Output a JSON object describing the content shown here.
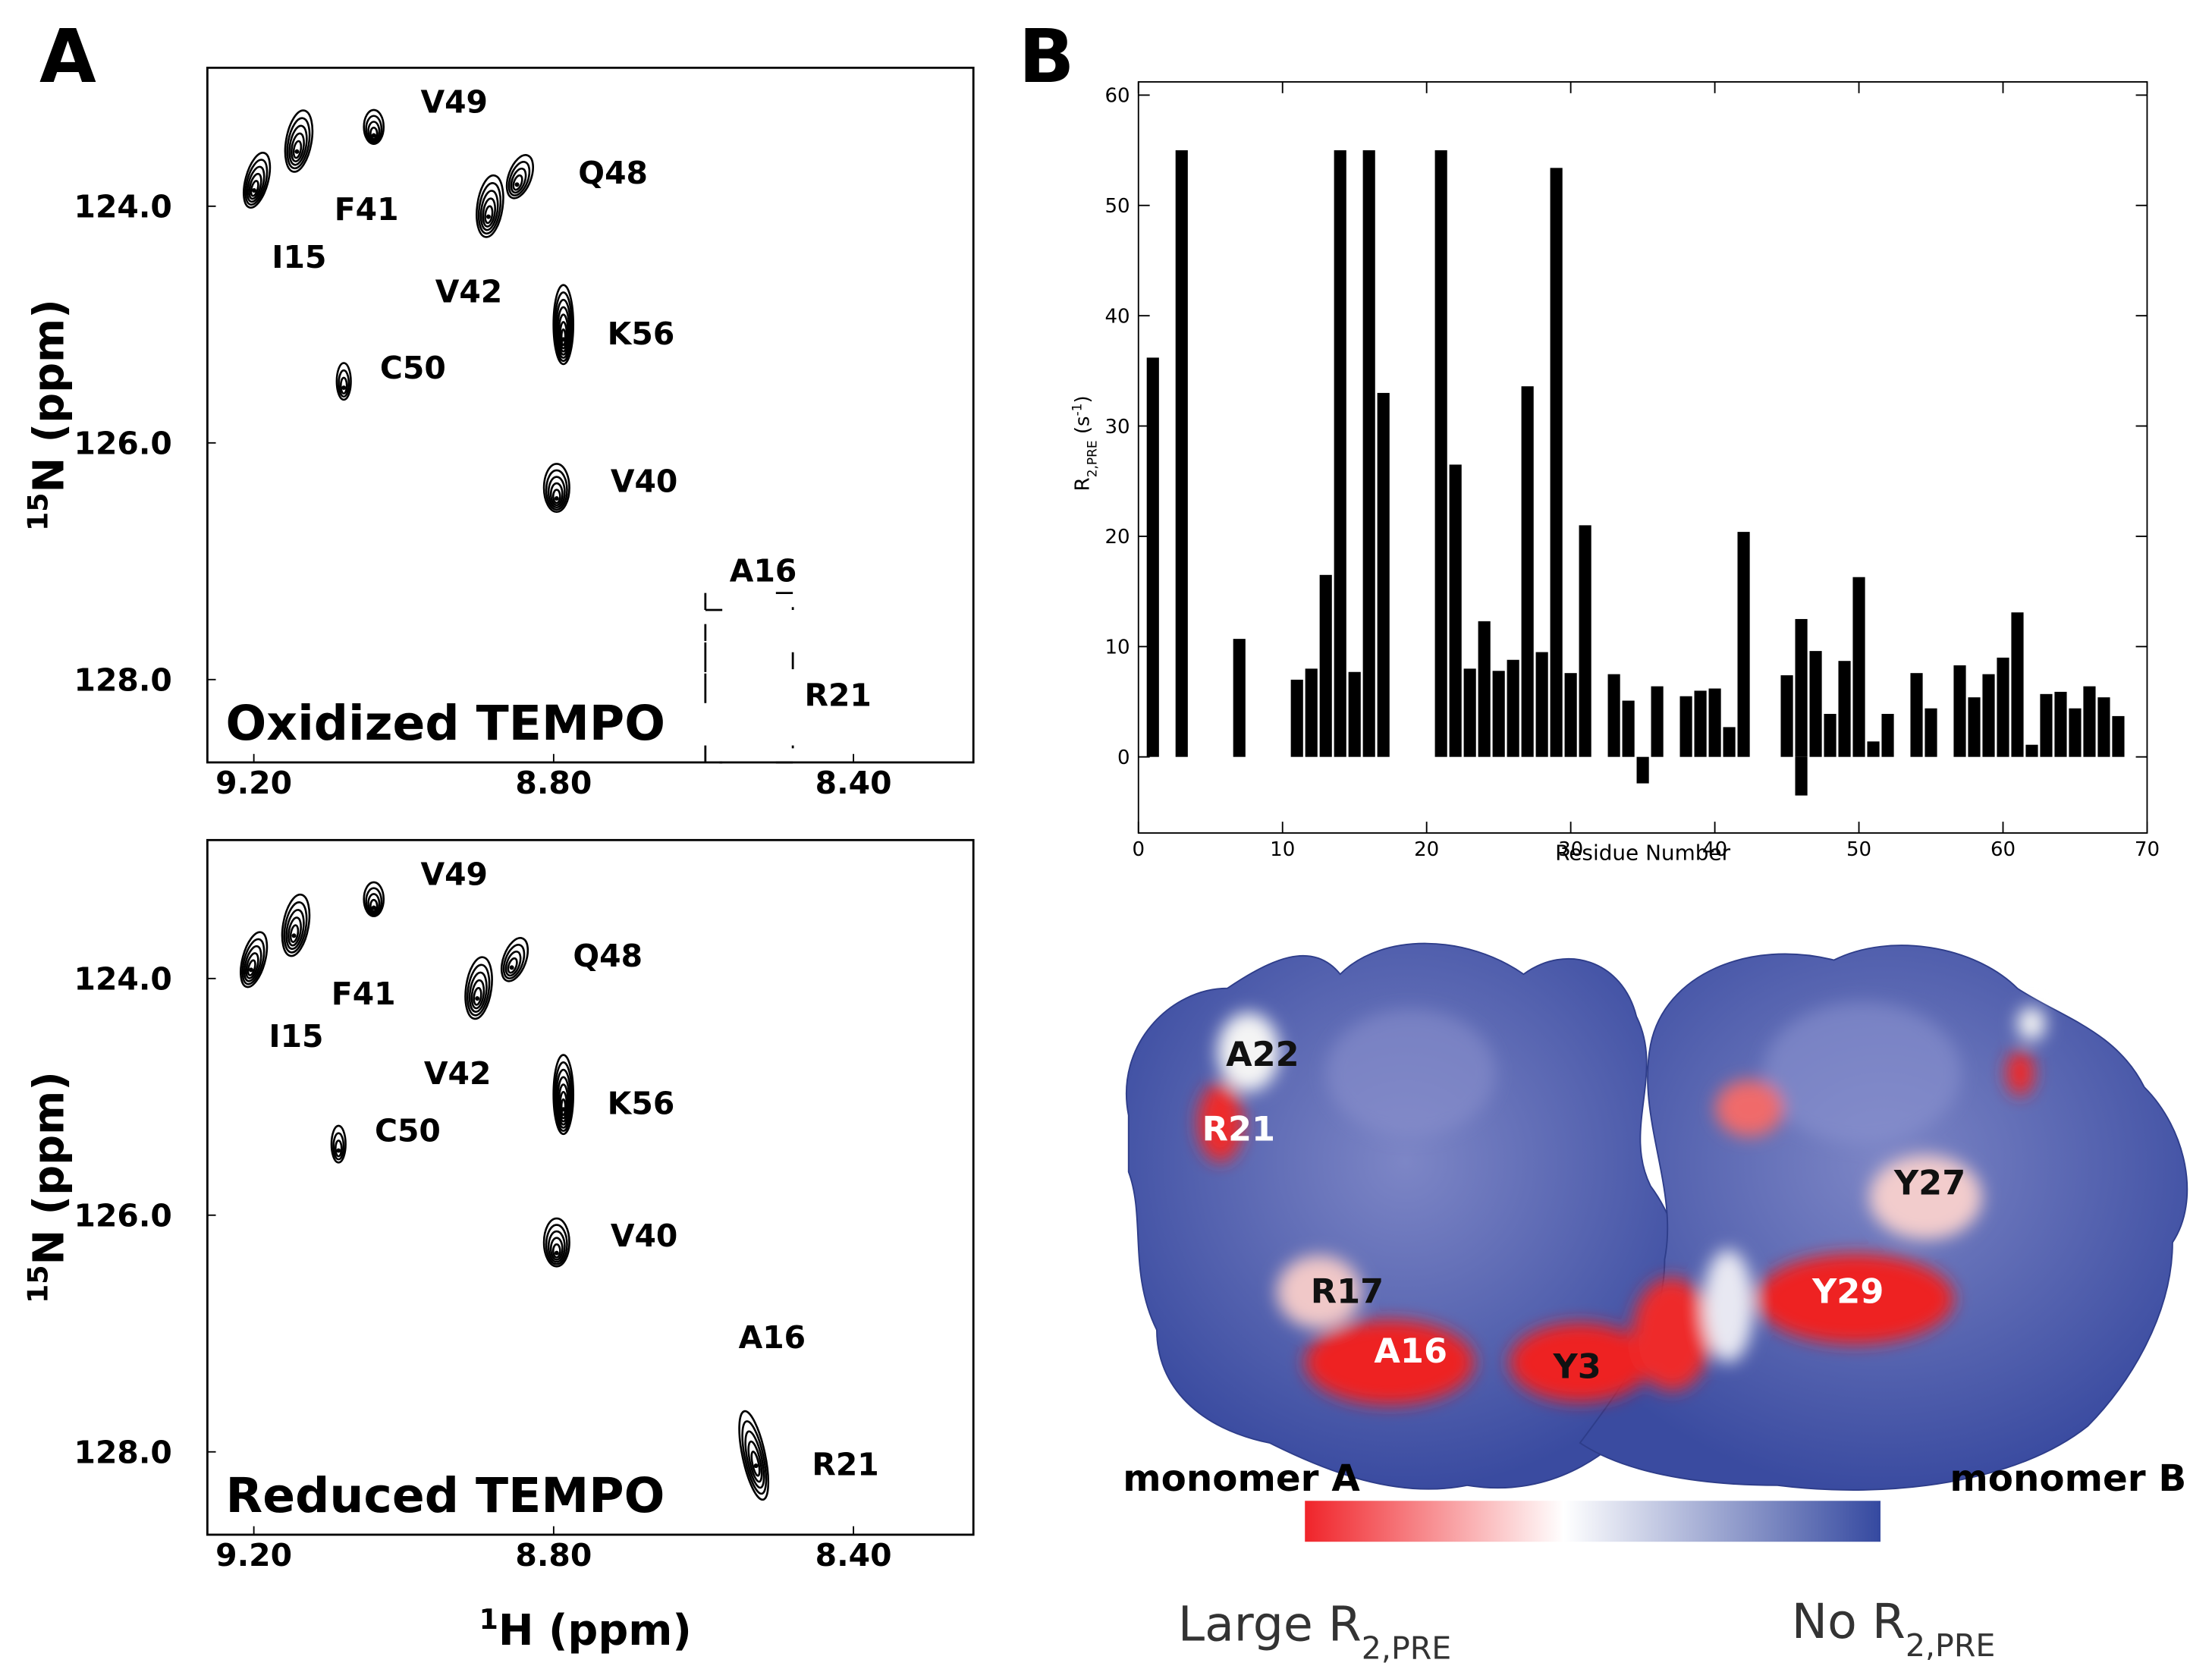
{
  "panel_labels": [
    "A",
    "B"
  ],
  "nmr": {
    "xlim": [
      9.262,
      8.24
    ],
    "ylim": [
      122.83,
      128.7
    ],
    "xticks": [
      {
        "value": 9.2,
        "label": "9.20"
      },
      {
        "value": 8.8,
        "label": "8.80"
      },
      {
        "value": 8.4,
        "label": "8.40"
      }
    ],
    "yticks": [
      {
        "value": 124,
        "label": "124.0"
      },
      {
        "value": 126,
        "label": "126.0"
      },
      {
        "value": 128,
        "label": "128.0"
      }
    ],
    "ylabel": {
      "sup": "15",
      "text": "N (ppm)"
    },
    "xlabel": {
      "sup": "1",
      "text": "H (ppm)"
    },
    "spectra": [
      {
        "title": "Oxidized TEMPO",
        "peaks": [
          {
            "labels": [
              "I15"
            ],
            "h": 9.196,
            "n": 123.78
          },
          {
            "labels": [
              "F41"
            ],
            "h": 9.14,
            "n": 123.45
          },
          {
            "labels": [
              "V49"
            ],
            "h": 9.04,
            "n": 123.33
          },
          {
            "labels": [
              "V42"
            ],
            "h": 8.885,
            "n": 124.0
          },
          {
            "labels": [
              "Q48"
            ],
            "h": 8.845,
            "n": 123.75
          },
          {
            "labels": [
              "C50"
            ],
            "h": 9.08,
            "n": 125.48
          },
          {
            "labels": [
              "K56"
            ],
            "h": 8.787,
            "n": 125.0
          },
          {
            "labels": [
              "V40"
            ],
            "h": 8.796,
            "n": 126.38
          }
        ],
        "broadened": [
          "A16",
          "R21"
        ]
      },
      {
        "title": "Reduced TEMPO",
        "peaks": [
          {
            "labels": [
              "I15"
            ],
            "h": 9.2,
            "n": 123.84
          },
          {
            "labels": [
              "F41"
            ],
            "h": 9.144,
            "n": 123.55
          },
          {
            "labels": [
              "V49"
            ],
            "h": 9.04,
            "n": 123.33
          },
          {
            "labels": [
              "V42"
            ],
            "h": 8.9,
            "n": 124.08
          },
          {
            "labels": [
              "Q48"
            ],
            "h": 8.852,
            "n": 123.84
          },
          {
            "labels": [
              "C50"
            ],
            "h": 9.087,
            "n": 125.4
          },
          {
            "labels": [
              "K56"
            ],
            "h": 8.787,
            "n": 124.98
          },
          {
            "labels": [
              "V40"
            ],
            "h": 8.796,
            "n": 126.23
          },
          {
            "labels": [
              "A16",
              "R21"
            ],
            "h": 8.533,
            "n": 128.03
          }
        ]
      }
    ]
  },
  "chart_data": {
    "type": "bar",
    "xlabel": "Residue Number",
    "ylabel": {
      "main": "R",
      "sub": "2,PRE",
      "open": " (s",
      "sup": "-1",
      "close": ")"
    },
    "x": [
      1,
      3,
      7,
      11,
      12,
      13,
      14,
      15,
      16,
      17,
      21,
      22,
      23,
      24,
      25,
      26,
      27,
      28,
      29,
      30,
      31,
      33,
      34,
      35,
      36,
      38,
      39,
      40,
      41,
      42,
      45,
      46,
      46,
      47,
      48,
      49,
      50,
      51,
      52,
      54,
      55,
      57,
      58,
      59,
      60,
      61,
      62,
      63,
      64,
      65,
      66,
      67,
      68
    ],
    "values": [
      36.2,
      55,
      10.7,
      7,
      8,
      16.5,
      55,
      7.7,
      55,
      33,
      55,
      26.5,
      8,
      12.3,
      7.8,
      8.8,
      33.6,
      9.5,
      53.4,
      7.6,
      21,
      7.5,
      5.1,
      -2.4,
      6.4,
      5.5,
      6,
      6.2,
      2.7,
      20.4,
      7.4,
      12.5,
      -3.5,
      9.6,
      3.9,
      8.7,
      16.3,
      1.4,
      3.9,
      7.6,
      4.4,
      8.3,
      5.4,
      7.5,
      9,
      13.1,
      1.1,
      5.7,
      5.9,
      4.4,
      6.4,
      5.4,
      3.7
    ],
    "color": "#000000",
    "xlim": [
      0,
      70
    ],
    "ylim": [
      -6.9,
      61.2
    ],
    "xticks": [
      0,
      10,
      20,
      30,
      40,
      50,
      60,
      70
    ],
    "yticks": [
      0,
      10,
      20,
      30,
      40,
      50,
      60
    ],
    "grid": false
  },
  "surface": {
    "residue_labels": [
      "A22",
      "R21",
      "R17",
      "A16",
      "Y3",
      "Y29",
      "Y27"
    ],
    "monomers": [
      "monomer A",
      "monomer B"
    ],
    "colorbar": {
      "low": {
        "main": "Large R",
        "sub": "2,PRE"
      },
      "high": {
        "main": "No R",
        "sub": "2,PRE"
      }
    }
  }
}
